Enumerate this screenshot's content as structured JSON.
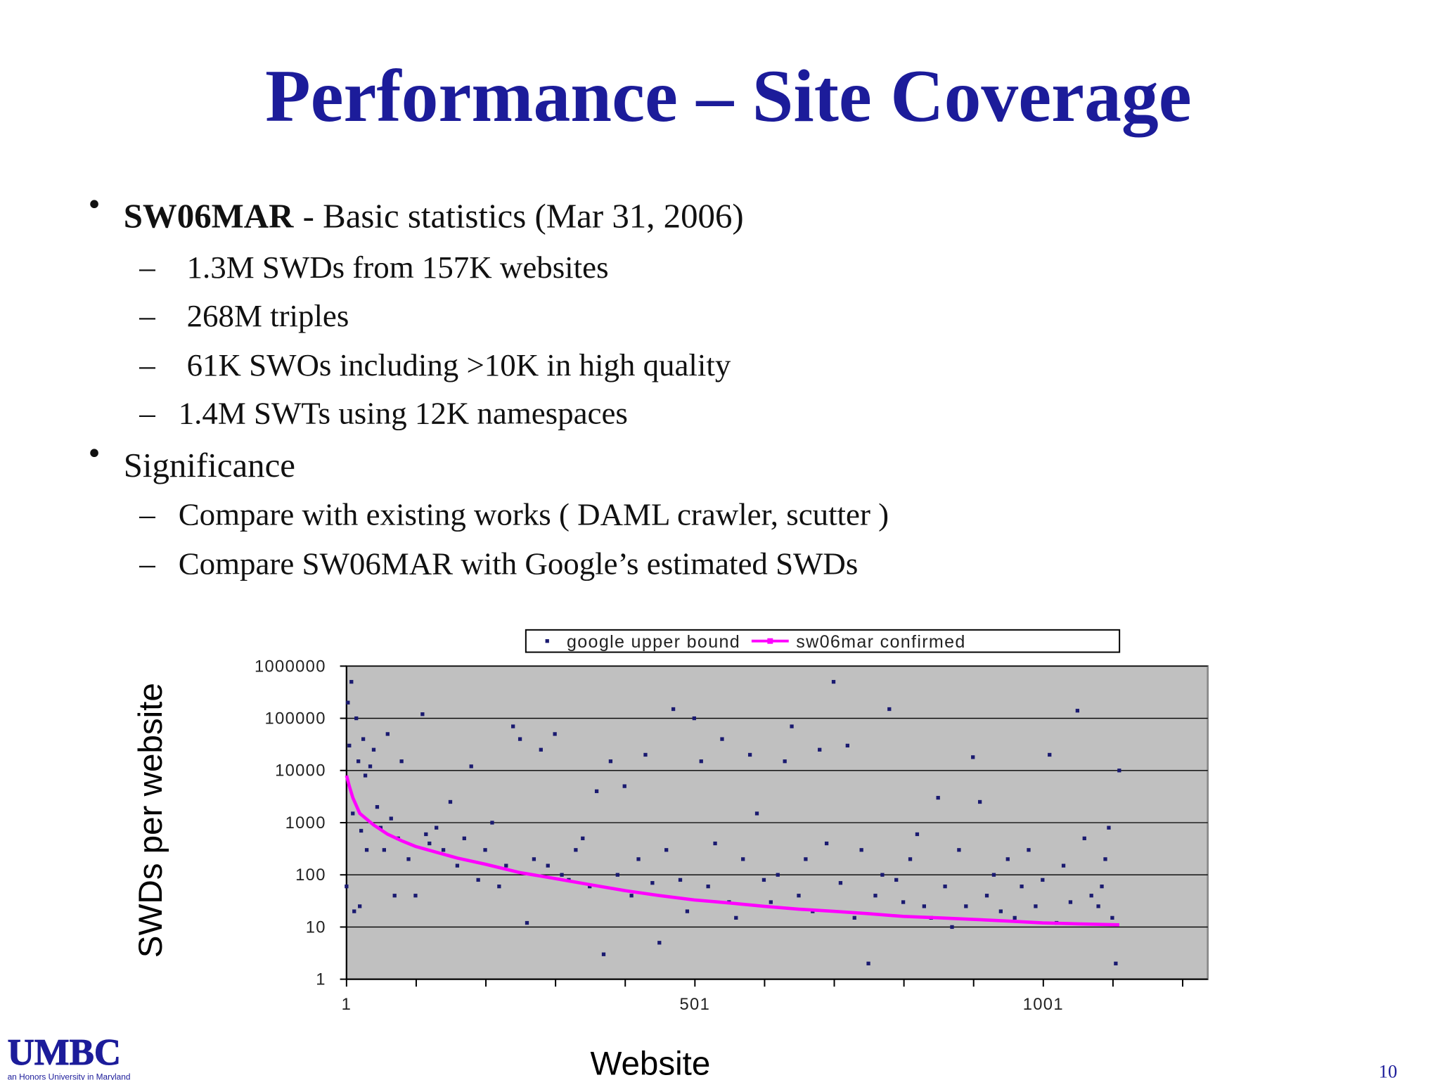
{
  "title": "Performance – Site Coverage",
  "bullets": [
    {
      "lead": "SW06MAR",
      "text": "- Basic statistics (Mar 31, 2006)",
      "subs": [
        "1.3M SWDs from 157K websites",
        "268M triples",
        "61K SWOs including >10K in high quality",
        "1.4M SWTs using  12K namespaces"
      ]
    },
    {
      "text": "Significance",
      "subs": [
        "Compare with existing works ( DAML crawler,  scutter )",
        "Compare  SW06MAR with Google’s estimated SWDs"
      ]
    }
  ],
  "footer": {
    "logo": "UMBC",
    "tagline": "an Honors University in Maryland",
    "page": "10"
  },
  "chart_data": {
    "type": "scatter",
    "x_label": "Website",
    "y_label": "SWDs per website",
    "xlim": [
      1,
      1237
    ],
    "xticks": [
      1,
      501,
      1001
    ],
    "xminor": [
      101,
      201,
      301,
      401,
      601,
      701,
      801,
      901,
      1101,
      1201
    ],
    "ylim": [
      1,
      1000000
    ],
    "yticks": [
      1,
      10,
      100,
      1000,
      10000,
      100000,
      1000000
    ],
    "log_y": true,
    "grid": true,
    "legend": "top",
    "plot_color": "#c0c0c0",
    "series": [
      {
        "name": "google upper bound",
        "color": "#1a1a70",
        "style": "points",
        "x": [
          1,
          3,
          5,
          8,
          10,
          12,
          15,
          18,
          20,
          22,
          25,
          28,
          30,
          35,
          40,
          45,
          50,
          55,
          60,
          65,
          70,
          75,
          80,
          90,
          100,
          110,
          115,
          120,
          130,
          140,
          150,
          160,
          170,
          180,
          190,
          200,
          210,
          220,
          230,
          240,
          250,
          260,
          270,
          280,
          290,
          300,
          310,
          320,
          330,
          340,
          350,
          360,
          370,
          380,
          390,
          400,
          410,
          420,
          430,
          440,
          450,
          460,
          470,
          480,
          490,
          500,
          510,
          520,
          530,
          540,
          550,
          560,
          570,
          580,
          590,
          600,
          610,
          620,
          630,
          640,
          650,
          660,
          670,
          680,
          690,
          700,
          710,
          720,
          730,
          740,
          750,
          760,
          770,
          780,
          790,
          800,
          810,
          820,
          830,
          840,
          850,
          860,
          870,
          880,
          890,
          900,
          910,
          920,
          930,
          940,
          950,
          960,
          970,
          980,
          990,
          1000,
          1010,
          1020,
          1030,
          1040,
          1050,
          1060,
          1070,
          1080,
          1085,
          1090,
          1095,
          1100,
          1105,
          1110
        ],
        "values": [
          60,
          200000,
          30000,
          500000,
          1500,
          20,
          100000,
          15000,
          25,
          700,
          40000,
          8000,
          300,
          12000,
          25000,
          2000,
          800,
          300,
          50000,
          1200,
          40,
          500,
          15000,
          200,
          40,
          120000,
          600,
          400,
          800,
          300,
          2500,
          150,
          500,
          12000,
          80,
          300,
          1000,
          60,
          150,
          70000,
          40000,
          12,
          200,
          25000,
          150,
          50000,
          100,
          80,
          300,
          500,
          60,
          4000,
          3,
          15000,
          100,
          5000,
          40,
          200,
          20000,
          70,
          5,
          300,
          150000,
          80,
          20,
          100000,
          15000,
          60,
          400,
          40000,
          30,
          15,
          200,
          20000,
          1500,
          80,
          30,
          100,
          15000,
          70000,
          40,
          200,
          20,
          25000,
          400,
          500000,
          70,
          30000,
          15,
          300,
          2,
          40,
          100,
          150000,
          80,
          30,
          200,
          600,
          25,
          15,
          3000,
          60,
          10,
          300,
          25,
          18000,
          2500,
          40,
          100,
          20,
          200,
          15,
          60,
          300,
          25,
          80,
          20000,
          12,
          150,
          30,
          140000,
          500,
          40,
          25,
          60,
          200,
          800,
          15,
          2,
          10000
        ]
      },
      {
        "name": "sw06mar confirmed",
        "color": "#ff00ff",
        "style": "line",
        "x": [
          1,
          5,
          10,
          20,
          40,
          60,
          80,
          100,
          130,
          160,
          200,
          250,
          300,
          350,
          400,
          450,
          500,
          550,
          600,
          650,
          700,
          750,
          800,
          850,
          900,
          950,
          1000,
          1050,
          1110
        ],
        "values": [
          8000,
          5000,
          3000,
          1500,
          900,
          600,
          450,
          350,
          270,
          210,
          160,
          110,
          85,
          65,
          50,
          40,
          33,
          29,
          25,
          22,
          20,
          18,
          16,
          15,
          14,
          13,
          12,
          11.5,
          11
        ]
      }
    ]
  }
}
